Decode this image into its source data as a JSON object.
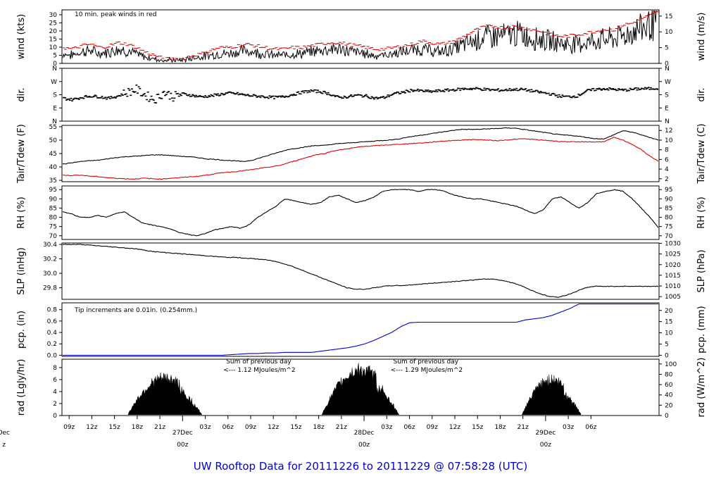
{
  "page_title": "UW Rooftop Data for 20111226  to  20111229 @ 07:58:28  (UTC)",
  "colors": {
    "black": "#000000",
    "red": "#dd0000",
    "blue": "#0000cc",
    "purple": "#aa00cc"
  },
  "chart_data": [
    {
      "name": "wind",
      "type": "line",
      "ylabel_left": "wind (kts)",
      "ylabel_right": "wind (m/s)",
      "ylim": [
        0,
        33
      ],
      "yticks_left": [
        0,
        5,
        10,
        15,
        20,
        25,
        30
      ],
      "yticks_right": [
        "0",
        "5",
        "10",
        "15"
      ],
      "yticks_right_pos": [
        0,
        9.72,
        19.44,
        29.16
      ],
      "annotation": "10 min. peak winds in red",
      "series": [
        {
          "name": "wind speed",
          "color": "#000000",
          "values": [
            6,
            5,
            7,
            8,
            6,
            7,
            9,
            8,
            6,
            4,
            3,
            2,
            2,
            2,
            3,
            4,
            5,
            6,
            6,
            7,
            8,
            7,
            6,
            5,
            5,
            6,
            6,
            7,
            8,
            9,
            9,
            8,
            7,
            6,
            5,
            5,
            6,
            7,
            8,
            9,
            8,
            7,
            8,
            10,
            12,
            14,
            16,
            17,
            17,
            18,
            18,
            16,
            15,
            14,
            13,
            12,
            12,
            13,
            14,
            15,
            15,
            17,
            19,
            22,
            24,
            26
          ]
        },
        {
          "name": "10 min peak",
          "color": "#dd0000",
          "values": [
            10,
            9,
            11,
            12,
            10,
            11,
            13,
            12,
            10,
            7,
            5,
            3,
            3,
            3,
            5,
            6,
            8,
            10,
            10,
            11,
            12,
            11,
            10,
            9,
            9,
            10,
            10,
            11,
            12,
            13,
            13,
            12,
            11,
            10,
            9,
            9,
            10,
            11,
            12,
            14,
            13,
            12,
            13,
            15,
            18,
            21,
            23,
            23,
            22,
            23,
            22,
            21,
            20,
            18,
            17,
            17,
            18,
            19,
            20,
            21,
            21,
            24,
            25,
            28,
            30,
            33
          ]
        }
      ]
    },
    {
      "name": "dir",
      "type": "scatter",
      "ylabel": "dir.",
      "ylim": [
        0,
        360
      ],
      "yticks": [
        "N",
        "E",
        "S",
        "W",
        "N"
      ],
      "series": [
        {
          "name": "direction",
          "color": "#000000",
          "values": [
            160,
            150,
            165,
            175,
            170,
            160,
            175,
            200,
            220,
            180,
            150,
            200,
            170,
            190,
            180,
            170,
            175,
            185,
            195,
            190,
            180,
            175,
            170,
            165,
            170,
            185,
            200,
            210,
            205,
            190,
            165,
            170,
            180,
            175,
            160,
            165,
            190,
            200,
            215,
            210,
            205,
            210,
            215,
            220,
            225,
            225,
            220,
            215,
            215,
            220,
            220,
            210,
            200,
            190,
            175,
            170,
            175,
            210,
            220,
            225,
            220,
            215,
            220,
            225,
            225,
            230
          ]
        }
      ]
    },
    {
      "name": "temperature",
      "type": "line",
      "ylabel_left": "Tair/Tdew (F)",
      "ylabel_right": "Tair/Tdew (C)",
      "ylim": [
        34.5,
        55.5
      ],
      "yticks_left": [
        35,
        40,
        45,
        50,
        55
      ],
      "yticks_right": [
        "2",
        "4",
        "6",
        "8",
        "10",
        "12"
      ],
      "yticks_right_pos": [
        35.6,
        39.2,
        42.8,
        46.4,
        50,
        53.6
      ],
      "series": [
        {
          "name": "Tair",
          "color": "#000000",
          "values": [
            41,
            41.5,
            42,
            42.3,
            42.5,
            43,
            43.5,
            43.8,
            44,
            44.2,
            44.5,
            44.5,
            44.3,
            44,
            43.8,
            43.5,
            43,
            42.8,
            42.5,
            42.3,
            42,
            42.5,
            43.5,
            44.5,
            45.5,
            46.5,
            47,
            47.5,
            48,
            48,
            48.5,
            48.8,
            49,
            49.3,
            49.5,
            49.8,
            50,
            50.3,
            51,
            51.5,
            52,
            52.5,
            53,
            53.5,
            54,
            54,
            54,
            54.2,
            54.3,
            54.5,
            54.5,
            54,
            53.5,
            53,
            52.5,
            52,
            51.8,
            51.5,
            51,
            50.5,
            50.5,
            52,
            53.5,
            53,
            52,
            51,
            50
          ]
        },
        {
          "name": "Tdew",
          "color": "#dd0000",
          "values": [
            37,
            36.8,
            37,
            36.6,
            36.4,
            36,
            35.8,
            35.6,
            35.5,
            35.8,
            35.6,
            35.5,
            35.8,
            36,
            36.3,
            36.5,
            37,
            37.5,
            38,
            38.2,
            38.6,
            39,
            39.5,
            40,
            40.5,
            41.5,
            42.5,
            43.5,
            44.5,
            45,
            46,
            46.5,
            47,
            47.5,
            47.8,
            48,
            48.2,
            48.4,
            48.6,
            48.8,
            49,
            49.3,
            49.6,
            49.8,
            50,
            50.2,
            50.2,
            50,
            49.8,
            50,
            50.3,
            50.5,
            50.3,
            50,
            49.8,
            49.5,
            49.4,
            49.3,
            49.4,
            49.3,
            49.5,
            51,
            50,
            48.5,
            46.5,
            44,
            42
          ]
        }
      ]
    },
    {
      "name": "rh",
      "type": "line",
      "ylabel_left": "RH (%)",
      "ylabel_right": "RH (%)",
      "ylim": [
        68,
        97
      ],
      "yticks_left": [
        70,
        75,
        80,
        85,
        90,
        95
      ],
      "yticks_right": [
        "70",
        "75",
        "80",
        "85",
        "90",
        "95"
      ],
      "yticks_right_pos": [
        70,
        75,
        80,
        85,
        90,
        95
      ],
      "series": [
        {
          "name": "RH",
          "color": "#000000",
          "values": [
            83,
            82,
            80,
            80,
            81,
            80,
            82,
            83,
            80,
            77,
            76,
            75,
            74,
            72,
            71,
            70,
            71,
            73,
            74,
            75,
            74,
            76,
            80,
            83,
            86,
            90,
            89,
            88,
            87,
            88,
            91,
            92,
            90,
            88,
            89,
            91,
            94,
            95,
            95,
            95,
            94,
            95,
            95,
            94,
            92,
            91,
            90,
            90,
            89,
            88,
            87,
            86,
            84,
            82,
            84,
            90,
            91,
            88,
            85,
            88,
            93,
            94,
            95,
            94,
            90,
            85,
            80,
            74
          ]
        }
      ]
    },
    {
      "name": "slp",
      "type": "line",
      "ylabel_left": "SLP (inHg)",
      "ylabel_right": "SLP (hPa)",
      "ylim": [
        29.64,
        30.42
      ],
      "yticks_left": [
        "29.8",
        "30.0",
        "30.2",
        "30.4"
      ],
      "yticks_left_pos": [
        29.8,
        30.0,
        30.2,
        30.4
      ],
      "yticks_right": [
        "1005",
        "1010",
        "1015",
        "1020",
        "1025",
        "1030"
      ],
      "yticks_right_pos": [
        29.677,
        29.825,
        29.973,
        30.12,
        30.268,
        30.416
      ],
      "series": [
        {
          "name": "SLP",
          "color": "#000000",
          "values": [
            30.4,
            30.4,
            30.4,
            30.39,
            30.38,
            30.37,
            30.36,
            30.35,
            30.34,
            30.32,
            30.3,
            30.29,
            30.28,
            30.27,
            30.26,
            30.25,
            30.24,
            30.23,
            30.22,
            30.22,
            30.21,
            30.2,
            30.19,
            30.17,
            30.14,
            30.1,
            30.05,
            30.0,
            29.95,
            29.9,
            29.85,
            29.8,
            29.78,
            29.78,
            29.8,
            29.82,
            29.83,
            29.83,
            29.84,
            29.85,
            29.86,
            29.87,
            29.88,
            29.89,
            29.9,
            29.91,
            29.92,
            29.92,
            29.9,
            29.87,
            29.83,
            29.77,
            29.72,
            29.68,
            29.67,
            29.7,
            29.75,
            29.8,
            29.82,
            29.82,
            29.82,
            29.82,
            29.82,
            29.82,
            29.82,
            29.82
          ]
        }
      ]
    },
    {
      "name": "precip",
      "type": "line",
      "ylabel_left": "pcp. (in)",
      "ylabel_right": "pcp. (mm)",
      "ylim": [
        -0.02,
        0.92
      ],
      "yticks_left": [
        "0.0",
        "0.2",
        "0.4",
        "0.6",
        "0.8"
      ],
      "yticks_left_pos": [
        0,
        0.2,
        0.4,
        0.6,
        0.8
      ],
      "yticks_right": [
        "0",
        "5",
        "10",
        "15",
        "20"
      ],
      "yticks_right_pos": [
        0,
        0.197,
        0.394,
        0.591,
        0.787
      ],
      "annotation": "Tip increments are 0.01in. (0.254mm.)",
      "series": [
        {
          "name": "precipitation",
          "color": "#0000cc",
          "values": [
            0,
            0,
            0,
            0,
            0,
            0,
            0,
            0,
            0,
            0,
            0,
            0,
            0,
            0,
            0,
            0,
            0,
            0,
            0,
            0.01,
            0.02,
            0.03,
            0.03,
            0.04,
            0.04,
            0.05,
            0.05,
            0.05,
            0.05,
            0.07,
            0.09,
            0.11,
            0.13,
            0.16,
            0.2,
            0.26,
            0.33,
            0.4,
            0.5,
            0.57,
            0.58,
            0.58,
            0.58,
            0.58,
            0.58,
            0.58,
            0.58,
            0.58,
            0.58,
            0.58,
            0.58,
            0.58,
            0.62,
            0.64,
            0.66,
            0.7,
            0.76,
            0.82,
            0.9,
            0.9,
            0.9,
            0.9,
            0.9,
            0.9,
            0.9,
            0.9,
            0.9,
            0.9
          ]
        }
      ]
    },
    {
      "name": "radiation",
      "type": "area",
      "ylabel_left": "rad (Lgly/hr)",
      "ylabel_right": "rad (W/m^2)",
      "ylim": [
        0,
        9.4
      ],
      "yticks_left": [
        "0",
        "2",
        "4",
        "6",
        "8"
      ],
      "yticks_left_pos": [
        0,
        2,
        4,
        6,
        8
      ],
      "yticks_right": [
        "0",
        "20",
        "40",
        "60",
        "80",
        "100"
      ],
      "yticks_right_pos": [
        0,
        1.72,
        3.44,
        5.16,
        6.88,
        8.6
      ],
      "annotations": [
        {
          "label": "Sum of previous day",
          "sub": "<--- 1.12 MJoules/m^2",
          "at": 0.275
        },
        {
          "label": "Sum of previous day",
          "sub": "<--- 1.29 MJoules/m^2",
          "at": 0.555
        }
      ],
      "days": [
        {
          "start": 0.11,
          "end": 0.235,
          "peak": 7.3
        },
        {
          "start": 0.435,
          "end": 0.565,
          "peak": 8.9
        },
        {
          "start": 0.77,
          "end": 0.87,
          "peak": 7.0
        }
      ]
    }
  ],
  "xaxis": {
    "hour_labels": [
      "09z",
      "12z",
      "15z",
      "18z",
      "21z",
      "03z",
      "06z",
      "09z",
      "12z",
      "15z",
      "18z",
      "21z",
      "03z",
      "06z",
      "09z",
      "12z",
      "15z",
      "18z",
      "21z",
      "03z",
      "06z"
    ],
    "hour_pos": [
      0.012,
      0.05,
      0.088,
      0.126,
      0.164,
      0.24,
      0.278,
      0.316,
      0.354,
      0.392,
      0.43,
      0.468,
      0.544,
      0.582,
      0.62,
      0.658,
      0.696,
      0.734,
      0.772,
      0.848,
      0.886
    ],
    "day_labels": [
      {
        "date": "27Dec",
        "time": "00z",
        "pos": 0.202
      },
      {
        "date": "28Dec",
        "time": "00z",
        "pos": 0.506
      },
      {
        "date": "29Dec",
        "time": "00z",
        "pos": 0.81
      }
    ],
    "cut_date": "Dec",
    "cut_time": "z"
  }
}
